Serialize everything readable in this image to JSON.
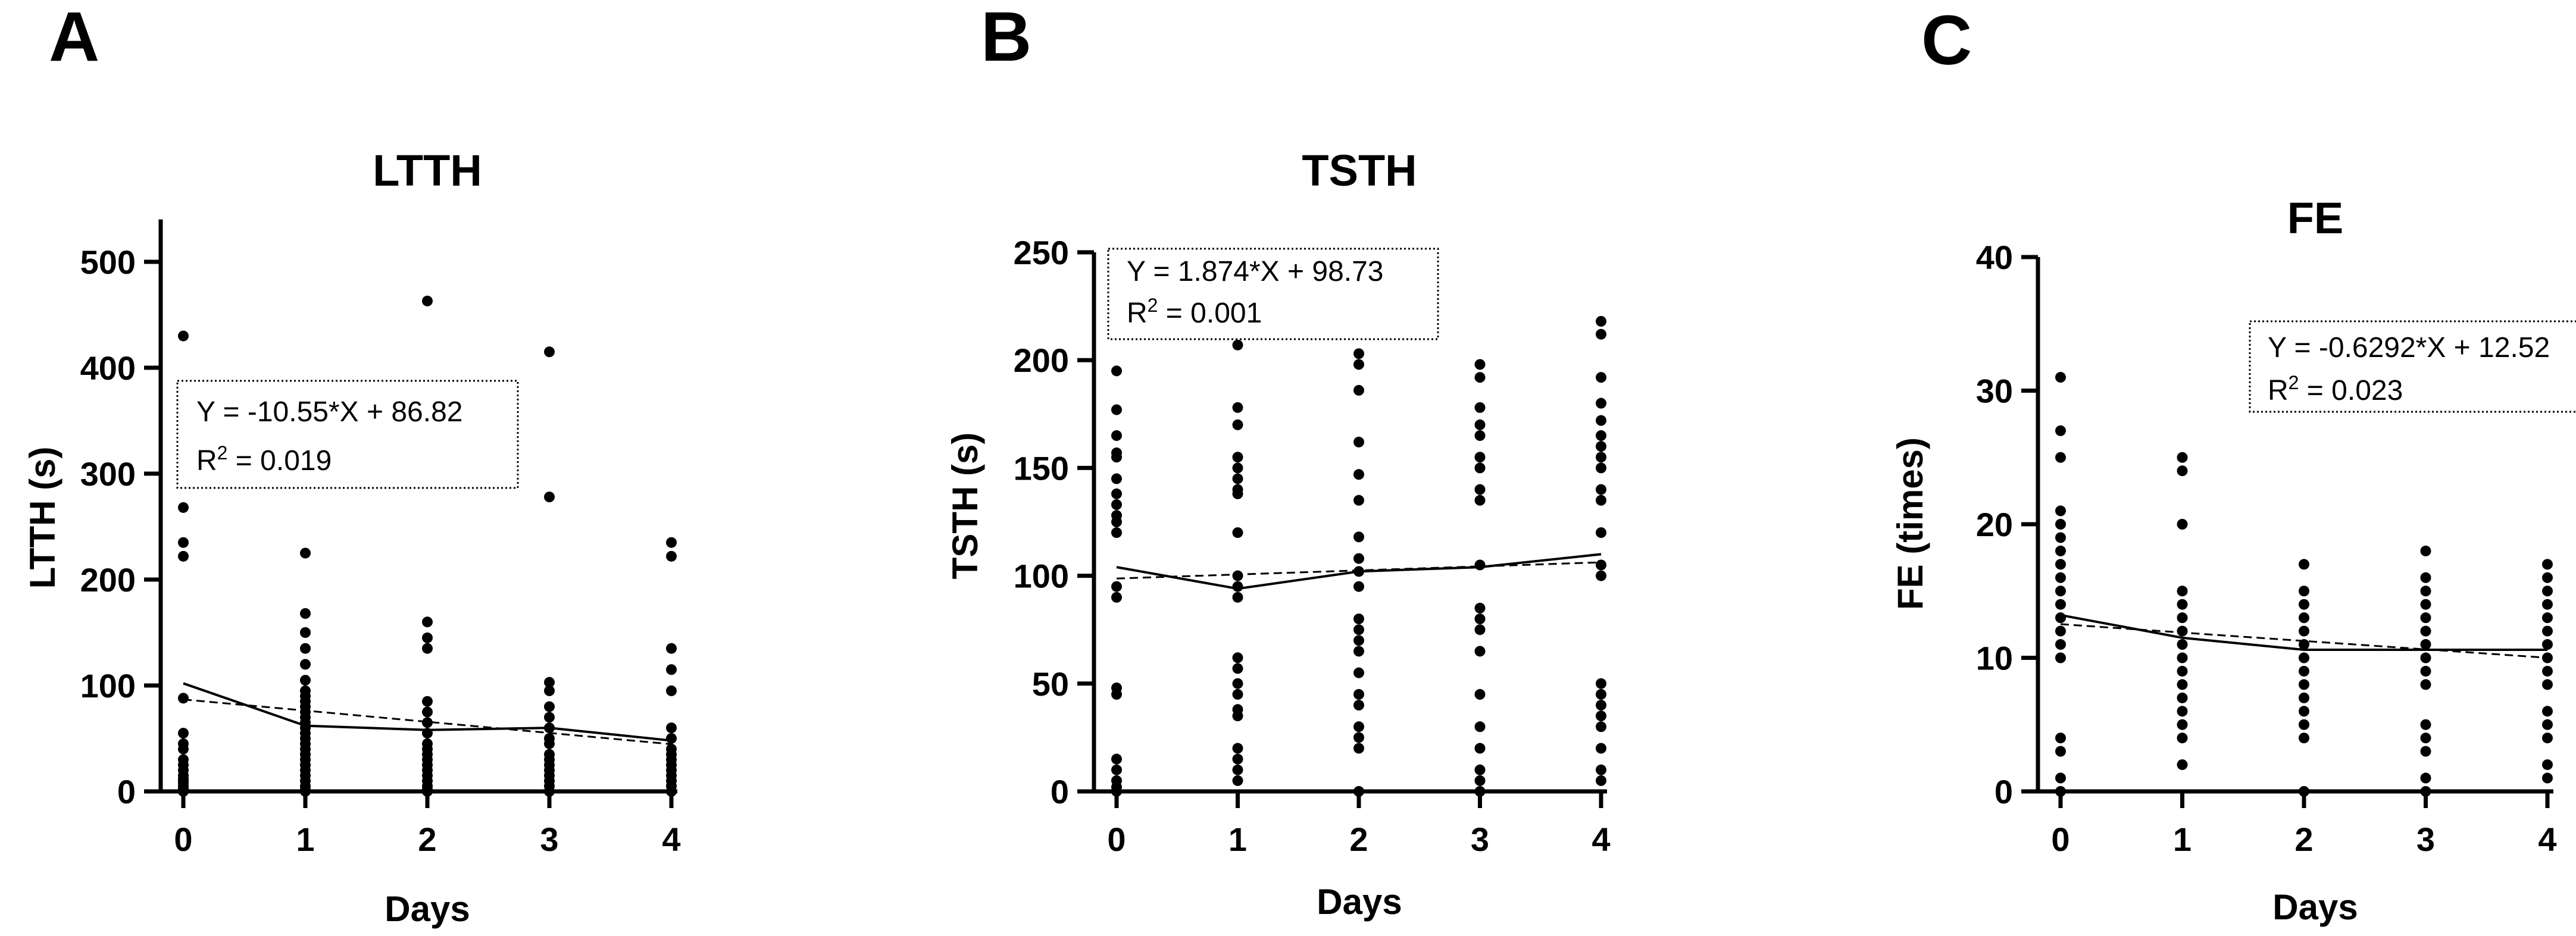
{
  "chart_data": [
    {
      "panel": "A",
      "type": "scatter",
      "title": "LTTH",
      "xlabel": "Days",
      "ylabel": "LTTH (s)",
      "xlim": [
        0,
        4
      ],
      "ylim": [
        0,
        540
      ],
      "xticks": [
        0,
        1,
        2,
        3,
        4
      ],
      "yticks": [
        0,
        100,
        200,
        300,
        400,
        500
      ],
      "equation": "Y = -10.55*X + 86.82",
      "r2_label": "R",
      "r2_sup": "2",
      "r2_value": " = 0.019",
      "points": {
        "0": [
          430,
          268,
          235,
          222,
          88,
          55,
          45,
          40,
          30,
          25,
          20,
          15,
          12,
          10,
          8,
          5,
          3,
          2,
          1,
          0
        ],
        "1": [
          225,
          168,
          150,
          135,
          120,
          105,
          95,
          90,
          85,
          80,
          75,
          70,
          65,
          60,
          55,
          50,
          45,
          40,
          35,
          30,
          25,
          20,
          15,
          10,
          5,
          2,
          0
        ],
        "2": [
          463,
          160,
          145,
          135,
          85,
          75,
          65,
          55,
          45,
          40,
          35,
          30,
          25,
          20,
          15,
          10,
          5,
          2,
          0
        ],
        "3": [
          415,
          278,
          103,
          95,
          80,
          70,
          60,
          50,
          45,
          35,
          30,
          25,
          20,
          15,
          10,
          5,
          0
        ],
        "4": [
          235,
          222,
          135,
          115,
          95,
          60,
          50,
          40,
          35,
          30,
          25,
          20,
          15,
          10,
          5,
          0
        ]
      },
      "mean_line": [
        102,
        62,
        58,
        60,
        48
      ],
      "regression": {
        "slope": -10.55,
        "intercept": 86.82
      }
    },
    {
      "panel": "B",
      "type": "scatter",
      "title": "TSTH",
      "xlabel": "Days",
      "ylabel": "TSTH (s)",
      "xlim": [
        0,
        4
      ],
      "ylim": [
        0,
        250
      ],
      "xticks": [
        0,
        1,
        2,
        3,
        4
      ],
      "yticks": [
        0,
        50,
        100,
        150,
        200,
        250
      ],
      "equation": "Y = 1.874*X + 98.73",
      "r2_label": "R",
      "r2_sup": "2",
      "r2_value": " = 0.001",
      "points": {
        "0": [
          195,
          177,
          165,
          157,
          155,
          145,
          138,
          133,
          128,
          125,
          120,
          95,
          90,
          48,
          45,
          15,
          10,
          5,
          2,
          0
        ],
        "1": [
          207,
          178,
          170,
          155,
          150,
          145,
          140,
          138,
          120,
          100,
          95,
          90,
          62,
          57,
          50,
          45,
          38,
          35,
          20,
          15,
          10,
          5
        ],
        "2": [
          228,
          203,
          198,
          186,
          162,
          147,
          135,
          118,
          108,
          102,
          95,
          80,
          75,
          70,
          65,
          55,
          45,
          40,
          30,
          25,
          20,
          0
        ],
        "3": [
          198,
          192,
          178,
          170,
          165,
          155,
          150,
          140,
          135,
          105,
          85,
          80,
          75,
          65,
          45,
          30,
          20,
          10,
          5,
          0
        ],
        "4": [
          218,
          212,
          192,
          180,
          172,
          165,
          160,
          155,
          150,
          140,
          135,
          120,
          105,
          100,
          50,
          45,
          40,
          35,
          30,
          20,
          10,
          5
        ]
      },
      "mean_line": [
        104,
        94,
        102,
        104,
        110
      ],
      "regression": {
        "slope": 1.874,
        "intercept": 98.73
      }
    },
    {
      "panel": "C",
      "type": "scatter",
      "title": "FE",
      "xlabel": "Days",
      "ylabel": "FE (times)",
      "xlim": [
        0,
        4
      ],
      "ylim": [
        0,
        40
      ],
      "xticks": [
        0,
        1,
        2,
        3,
        4
      ],
      "yticks": [
        0,
        10,
        20,
        30,
        40
      ],
      "equation": "Y = -0.6292*X + 12.52",
      "r2_label": "R",
      "r2_sup": "2",
      "r2_value": " = 0.023",
      "points": {
        "0": [
          31,
          27,
          25,
          21,
          20,
          19,
          18,
          17,
          16,
          15,
          14,
          13,
          12,
          11,
          10,
          4,
          3,
          1,
          0
        ],
        "1": [
          25,
          24,
          20,
          15,
          14,
          13,
          12,
          11,
          10,
          9,
          8,
          7,
          6,
          5,
          4,
          2
        ],
        "2": [
          17,
          15,
          14,
          13,
          12,
          11,
          10,
          9,
          8,
          7,
          6,
          5,
          4,
          0
        ],
        "3": [
          18,
          16,
          15,
          14,
          13,
          12,
          11,
          10,
          9,
          8,
          5,
          4,
          3,
          1,
          0
        ],
        "4": [
          17,
          16,
          15,
          14,
          13,
          12,
          11,
          10,
          9,
          8,
          6,
          5,
          4,
          2,
          1
        ]
      },
      "mean_line": [
        13.2,
        11.5,
        10.6,
        10.6,
        10.6
      ],
      "regression": {
        "slope": -0.6292,
        "intercept": 12.52
      }
    }
  ]
}
